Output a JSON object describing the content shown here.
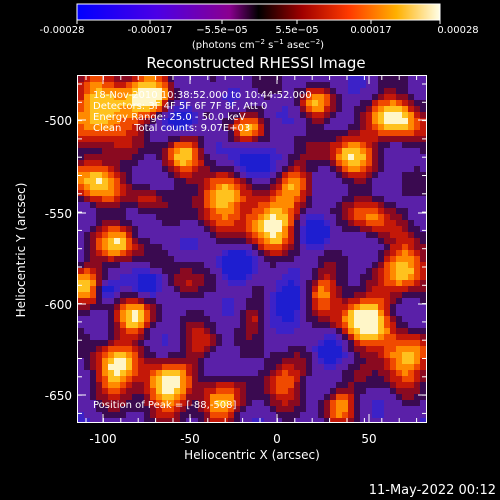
{
  "colorbar": {
    "ticks": [
      "-0.00028",
      "-0.00017",
      "−5.5e−05",
      "5.5e−05",
      "0.00017",
      "0.00028"
    ],
    "unit_main": "(photons cm",
    "unit_exp1": "−2",
    "unit_mid": " s",
    "unit_exp2": "−1",
    "unit_end": " asec",
    "unit_exp3": "−2",
    "unit_close": ")"
  },
  "title": "Reconstructed RHESSI Image",
  "annotations": {
    "line1": "18-Nov-2010 10:38:52.000 to 10:44:52.000",
    "line2": "Detectors: 3F 4F 5F 6F 7F 8F, Att 0",
    "line3": "Energy Range: 25.0 - 50.0 keV",
    "line4": "Clean    Total counts: 9.07E+03",
    "peak": "Position of Peak = [-88,-508]"
  },
  "axes": {
    "xlabel": "Heliocentric X (arcsec)",
    "ylabel": "Heliocentric Y (arcsec)",
    "xticks": [
      "-100",
      "-50",
      "0",
      "50"
    ],
    "yticks": [
      "-500",
      "-550",
      "-600",
      "-650"
    ]
  },
  "footer": {
    "date": "11-May-2022 00:12"
  }
}
